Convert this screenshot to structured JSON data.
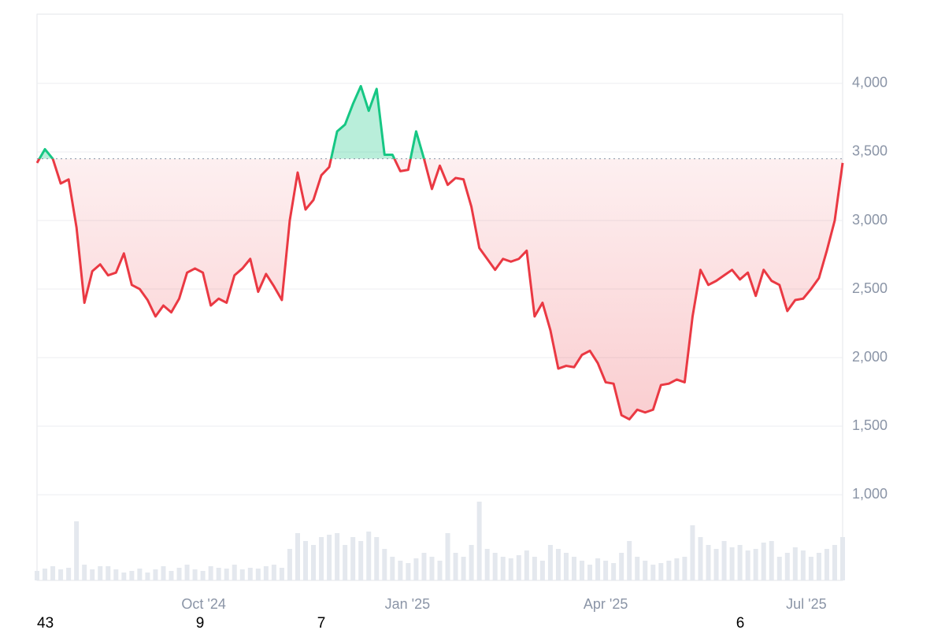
{
  "chart_data": {
    "type": "baseline-line",
    "values": [
      3420,
      3520,
      3450,
      3270,
      3300,
      2950,
      2400,
      2630,
      2680,
      2600,
      2620,
      2760,
      2530,
      2500,
      2420,
      2300,
      2380,
      2330,
      2430,
      2620,
      2650,
      2620,
      2380,
      2430,
      2400,
      2600,
      2650,
      2720,
      2480,
      2610,
      2520,
      2420,
      3000,
      3350,
      3080,
      3150,
      3330,
      3390,
      3650,
      3700,
      3850,
      3980,
      3800,
      3960,
      3480,
      3480,
      3360,
      3370,
      3650,
      3450,
      3230,
      3400,
      3260,
      3310,
      3300,
      3100,
      2800,
      2720,
      2640,
      2720,
      2700,
      2720,
      2780,
      2300,
      2400,
      2200,
      1920,
      1940,
      1930,
      2020,
      2050,
      1960,
      1820,
      1810,
      1580,
      1550,
      1620,
      1600,
      1620,
      1800,
      1810,
      1840,
      1820,
      2300,
      2640,
      2530,
      2560,
      2600,
      2640,
      2570,
      2620,
      2450,
      2640,
      2560,
      2530,
      2340,
      2420,
      2430,
      2500,
      2580,
      2780,
      3000,
      3420
    ],
    "volumes": [
      12,
      15,
      18,
      14,
      16,
      75,
      20,
      14,
      18,
      18,
      14,
      10,
      12,
      15,
      10,
      14,
      18,
      12,
      16,
      20,
      14,
      12,
      18,
      16,
      15,
      20,
      14,
      16,
      15,
      18,
      20,
      16,
      40,
      60,
      50,
      45,
      55,
      58,
      60,
      45,
      55,
      50,
      62,
      55,
      40,
      30,
      25,
      22,
      28,
      35,
      30,
      25,
      60,
      35,
      30,
      45,
      100,
      40,
      35,
      30,
      28,
      32,
      38,
      30,
      25,
      45,
      40,
      35,
      30,
      25,
      20,
      28,
      25,
      22,
      35,
      50,
      30,
      25,
      20,
      22,
      25,
      28,
      30,
      70,
      55,
      45,
      40,
      50,
      42,
      45,
      38,
      40,
      48,
      50,
      30,
      35,
      42,
      38,
      30,
      35,
      40,
      45,
      55
    ],
    "volume_lim": [
      0,
      100
    ],
    "baseline": 3450,
    "up_color": "#16c784",
    "down_color": "#ea3943",
    "xlim": [
      0,
      102
    ],
    "xticks": [
      {
        "value": 21.1,
        "label": "Oct '24"
      },
      {
        "value": 46.9,
        "label": "Jan '25"
      },
      {
        "value": 72.0,
        "label": "Apr '25"
      },
      {
        "value": 97.4,
        "label": "Jul '25"
      }
    ],
    "ylim": [
      375,
      4505
    ],
    "yticks": [
      {
        "value": 1000,
        "label": "1,000"
      },
      {
        "value": 1500,
        "label": "1,500"
      },
      {
        "value": 2000,
        "label": "2,000"
      },
      {
        "value": 2500,
        "label": "2,500"
      },
      {
        "value": 3000,
        "label": "3,000"
      },
      {
        "value": 3500,
        "label": "3,500"
      },
      {
        "value": 4000,
        "label": "4,000"
      }
    ],
    "grid": true,
    "footer_labels": [
      "43",
      "9",
      "7",
      "6"
    ]
  }
}
